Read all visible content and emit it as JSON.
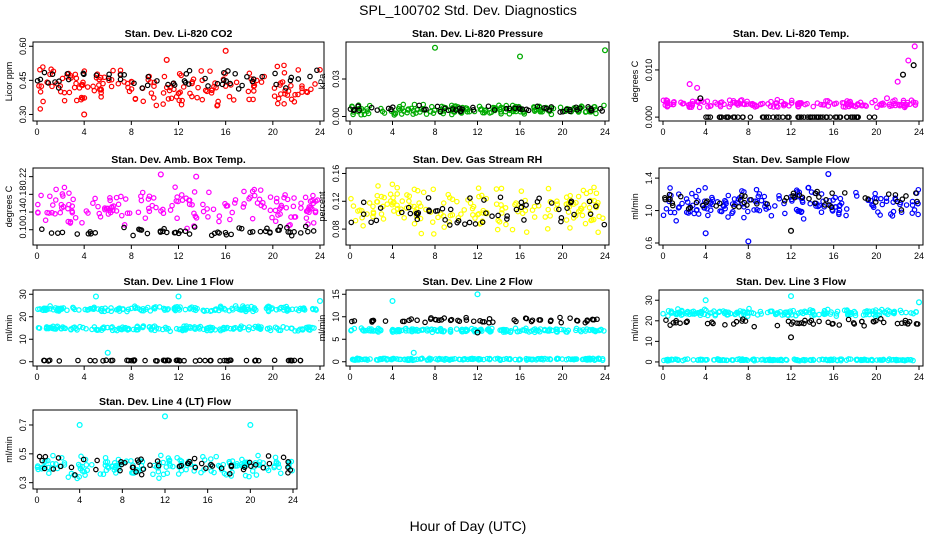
{
  "figure": {
    "title": "SPL_100702  Std. Dev. Diagnostics",
    "xlabel": "Hour of Day (UTC)"
  },
  "chart_data": [
    {
      "type": "scatter",
      "title": "Stan. Dev. Li-820 CO2",
      "ylabel": "Licor ppm",
      "xlim": [
        0,
        24
      ],
      "ylim": [
        0.28,
        0.61
      ],
      "xticks": [
        "0",
        "4",
        "8",
        "12",
        "16",
        "20",
        "24"
      ],
      "yticks": [
        "0.30",
        "0.45",
        "0.60"
      ],
      "ytick_values": [
        0.3,
        0.45,
        0.6
      ],
      "series": [
        {
          "color": "#ff0000",
          "band": [
            0.32,
            0.52
          ],
          "x": [
            4,
            11,
            16
          ],
          "y": [
            0.3,
            0.54,
            0.58
          ]
        },
        {
          "color": "#000000",
          "band": [
            0.4,
            0.5
          ],
          "x": [],
          "y": []
        }
      ]
    },
    {
      "type": "scatter",
      "title": "Stan. Dev. Li-820 Pressure",
      "ylabel": "kPa",
      "xlim": [
        0,
        24
      ],
      "ylim": [
        -0.002,
        0.058
      ],
      "xticks": [
        "0",
        "4",
        "8",
        "12",
        "16",
        "20",
        "24"
      ],
      "yticks": [
        "0.00",
        "0.03"
      ],
      "ytick_values": [
        0.0,
        0.03
      ],
      "series": [
        {
          "color": "#00aa00",
          "band": [
            0.001,
            0.01
          ],
          "x": [
            8,
            16,
            24
          ],
          "y": [
            0.055,
            0.048,
            0.053
          ]
        },
        {
          "color": "#000000",
          "band": [
            0.003,
            0.009
          ],
          "x": [],
          "y": []
        }
      ]
    },
    {
      "type": "scatter",
      "title": "Stan. Dev. Li-820 Temp.",
      "ylabel": "degrees C",
      "xlim": [
        0,
        24
      ],
      "ylim": [
        -0.0004,
        0.0155
      ],
      "xticks": [
        "0",
        "4",
        "8",
        "12",
        "16",
        "20",
        "24"
      ],
      "yticks": [
        "0.000",
        "0.010"
      ],
      "ytick_values": [
        0.0,
        0.01
      ],
      "series": [
        {
          "color": "#ff00ff",
          "band": [
            0.0018,
            0.0038
          ],
          "x": [
            2.5,
            3.2,
            21,
            22,
            23,
            23.6
          ],
          "y": [
            0.007,
            0.0062,
            0.004,
            0.0075,
            0.012,
            0.015
          ]
        },
        {
          "color": "#000000",
          "band": [
            0.0,
            0.0
          ],
          "x": [
            3.5,
            22.5,
            23.5
          ],
          "y": [
            0.004,
            0.009,
            0.011
          ]
        }
      ]
    },
    {
      "type": "scatter",
      "title": "Stan. Dev. Amb. Box Temp.",
      "ylabel": "degrees C",
      "xlim": [
        0,
        24
      ],
      "ylim": [
        0.07,
        0.235
      ],
      "xticks": [
        "0",
        "4",
        "8",
        "12",
        "16",
        "20",
        "24"
      ],
      "yticks": [
        "0.10",
        "0.14",
        "0.18",
        "0.22"
      ],
      "ytick_values": [
        0.1,
        0.14,
        0.18,
        0.22
      ],
      "series": [
        {
          "color": "#ff00ff",
          "band": [
            0.1,
            0.2
          ],
          "x": [
            10.5,
            13.5
          ],
          "y": [
            0.225,
            0.22
          ]
        },
        {
          "color": "#000000",
          "band": [
            0.08,
            0.11
          ],
          "x": [],
          "y": []
        }
      ]
    },
    {
      "type": "scatter",
      "title": "Stan. Dev. Gas Stream RH",
      "ylabel": "percent",
      "xlim": [
        0,
        24
      ],
      "ylim": [
        0.06,
        0.165
      ],
      "xticks": [
        "0",
        "4",
        "8",
        "12",
        "16",
        "20",
        "24"
      ],
      "yticks": [
        "0.08",
        "0.12",
        "0.16"
      ],
      "ytick_values": [
        0.08,
        0.12,
        0.16
      ],
      "series": [
        {
          "color": "#ffff00",
          "band": [
            0.07,
            0.15
          ],
          "x": [],
          "y": []
        },
        {
          "color": "#000000",
          "band": [
            0.08,
            0.13
          ],
          "x": [],
          "y": []
        }
      ]
    },
    {
      "type": "scatter",
      "title": "Stan. Dev. Sample Flow",
      "ylabel": "ml/min",
      "xlim": [
        0,
        24
      ],
      "ylim": [
        0.6,
        1.5
      ],
      "xticks": [
        "0",
        "4",
        "8",
        "12",
        "16",
        "20",
        "24"
      ],
      "yticks": [
        "0.6",
        "1.0",
        "1.4"
      ],
      "ytick_values": [
        0.6,
        1.0,
        1.4
      ],
      "series": [
        {
          "color": "#0000ff",
          "band": [
            0.85,
            1.3
          ],
          "x": [
            8,
            4,
            15.5
          ],
          "y": [
            0.62,
            0.72,
            1.45
          ]
        },
        {
          "color": "#000000",
          "band": [
            1.0,
            1.25
          ],
          "x": [
            12
          ],
          "y": [
            0.75
          ]
        }
      ]
    },
    {
      "type": "scatter",
      "title": "Stan. Dev. Line 1 Flow",
      "ylabel": "ml/min",
      "xlim": [
        0,
        24
      ],
      "ylim": [
        -1,
        31
      ],
      "xticks": [
        "0",
        "4",
        "8",
        "12",
        "16",
        "20",
        "24"
      ],
      "yticks": [
        "0",
        "10",
        "20",
        "30"
      ],
      "ytick_values": [
        0,
        10,
        20,
        30
      ],
      "series": [
        {
          "color": "#00ffff",
          "band": [
            22,
            25
          ],
          "x": [
            5,
            12,
            24
          ],
          "y": [
            29,
            29,
            27
          ]
        },
        {
          "color": "#00ffff",
          "band": [
            13.5,
            16
          ],
          "x": [
            6
          ],
          "y": [
            4
          ]
        },
        {
          "color": "#000000",
          "band": [
            0.3,
            0.8
          ],
          "x": [],
          "y": []
        }
      ]
    },
    {
      "type": "scatter",
      "title": "Stan. Dev. Line 2 Flow",
      "ylabel": "ml/min",
      "xlim": [
        0,
        24
      ],
      "ylim": [
        -0.5,
        15.5
      ],
      "xticks": [
        "0",
        "4",
        "8",
        "12",
        "16",
        "20",
        "24"
      ],
      "yticks": [
        "0",
        "5",
        "10",
        "15"
      ],
      "ytick_values": [
        0,
        5,
        10,
        15
      ],
      "series": [
        {
          "color": "#00ffff",
          "band": [
            6.5,
            7.5
          ],
          "x": [
            4,
            12,
            6
          ],
          "y": [
            13.5,
            15,
            2
          ]
        },
        {
          "color": "#00ffff",
          "band": [
            0.3,
            0.8
          ],
          "x": [],
          "y": []
        },
        {
          "color": "#000000",
          "band": [
            8.5,
            10
          ],
          "x": [
            12
          ],
          "y": [
            6.5
          ]
        }
      ]
    },
    {
      "type": "scatter",
      "title": "Stan. Dev. Line 3 Flow",
      "ylabel": "ml/min",
      "xlim": [
        0,
        24
      ],
      "ylim": [
        -1,
        34
      ],
      "xticks": [
        "0",
        "4",
        "8",
        "12",
        "16",
        "20",
        "24"
      ],
      "yticks": [
        "0",
        "10",
        "20",
        "30"
      ],
      "ytick_values": [
        0,
        10,
        20,
        30
      ],
      "series": [
        {
          "color": "#00ffff",
          "band": [
            22,
            26
          ],
          "x": [
            4,
            12,
            24
          ],
          "y": [
            30,
            32,
            29
          ]
        },
        {
          "color": "#00ffff",
          "band": [
            0.5,
            1.5
          ],
          "x": [],
          "y": []
        },
        {
          "color": "#000000",
          "band": [
            17,
            21
          ],
          "x": [
            12
          ],
          "y": [
            12
          ]
        }
      ]
    },
    {
      "type": "scatter",
      "title": "Stan. Dev. Line 4 (LT) Flow",
      "ylabel": "ml/min",
      "xlim": [
        0,
        24
      ],
      "ylim": [
        0.27,
        0.79
      ],
      "xticks": [
        "0",
        "4",
        "8",
        "12",
        "16",
        "20",
        "24"
      ],
      "yticks": [
        "0.3",
        "0.5",
        "0.7"
      ],
      "ytick_values": [
        0.3,
        0.5,
        0.7
      ],
      "series": [
        {
          "color": "#00ffff",
          "band": [
            0.32,
            0.5
          ],
          "x": [
            4,
            12,
            20
          ],
          "y": [
            0.7,
            0.76,
            0.7
          ]
        },
        {
          "color": "#000000",
          "band": [
            0.34,
            0.5
          ],
          "x": [],
          "y": []
        }
      ]
    }
  ]
}
